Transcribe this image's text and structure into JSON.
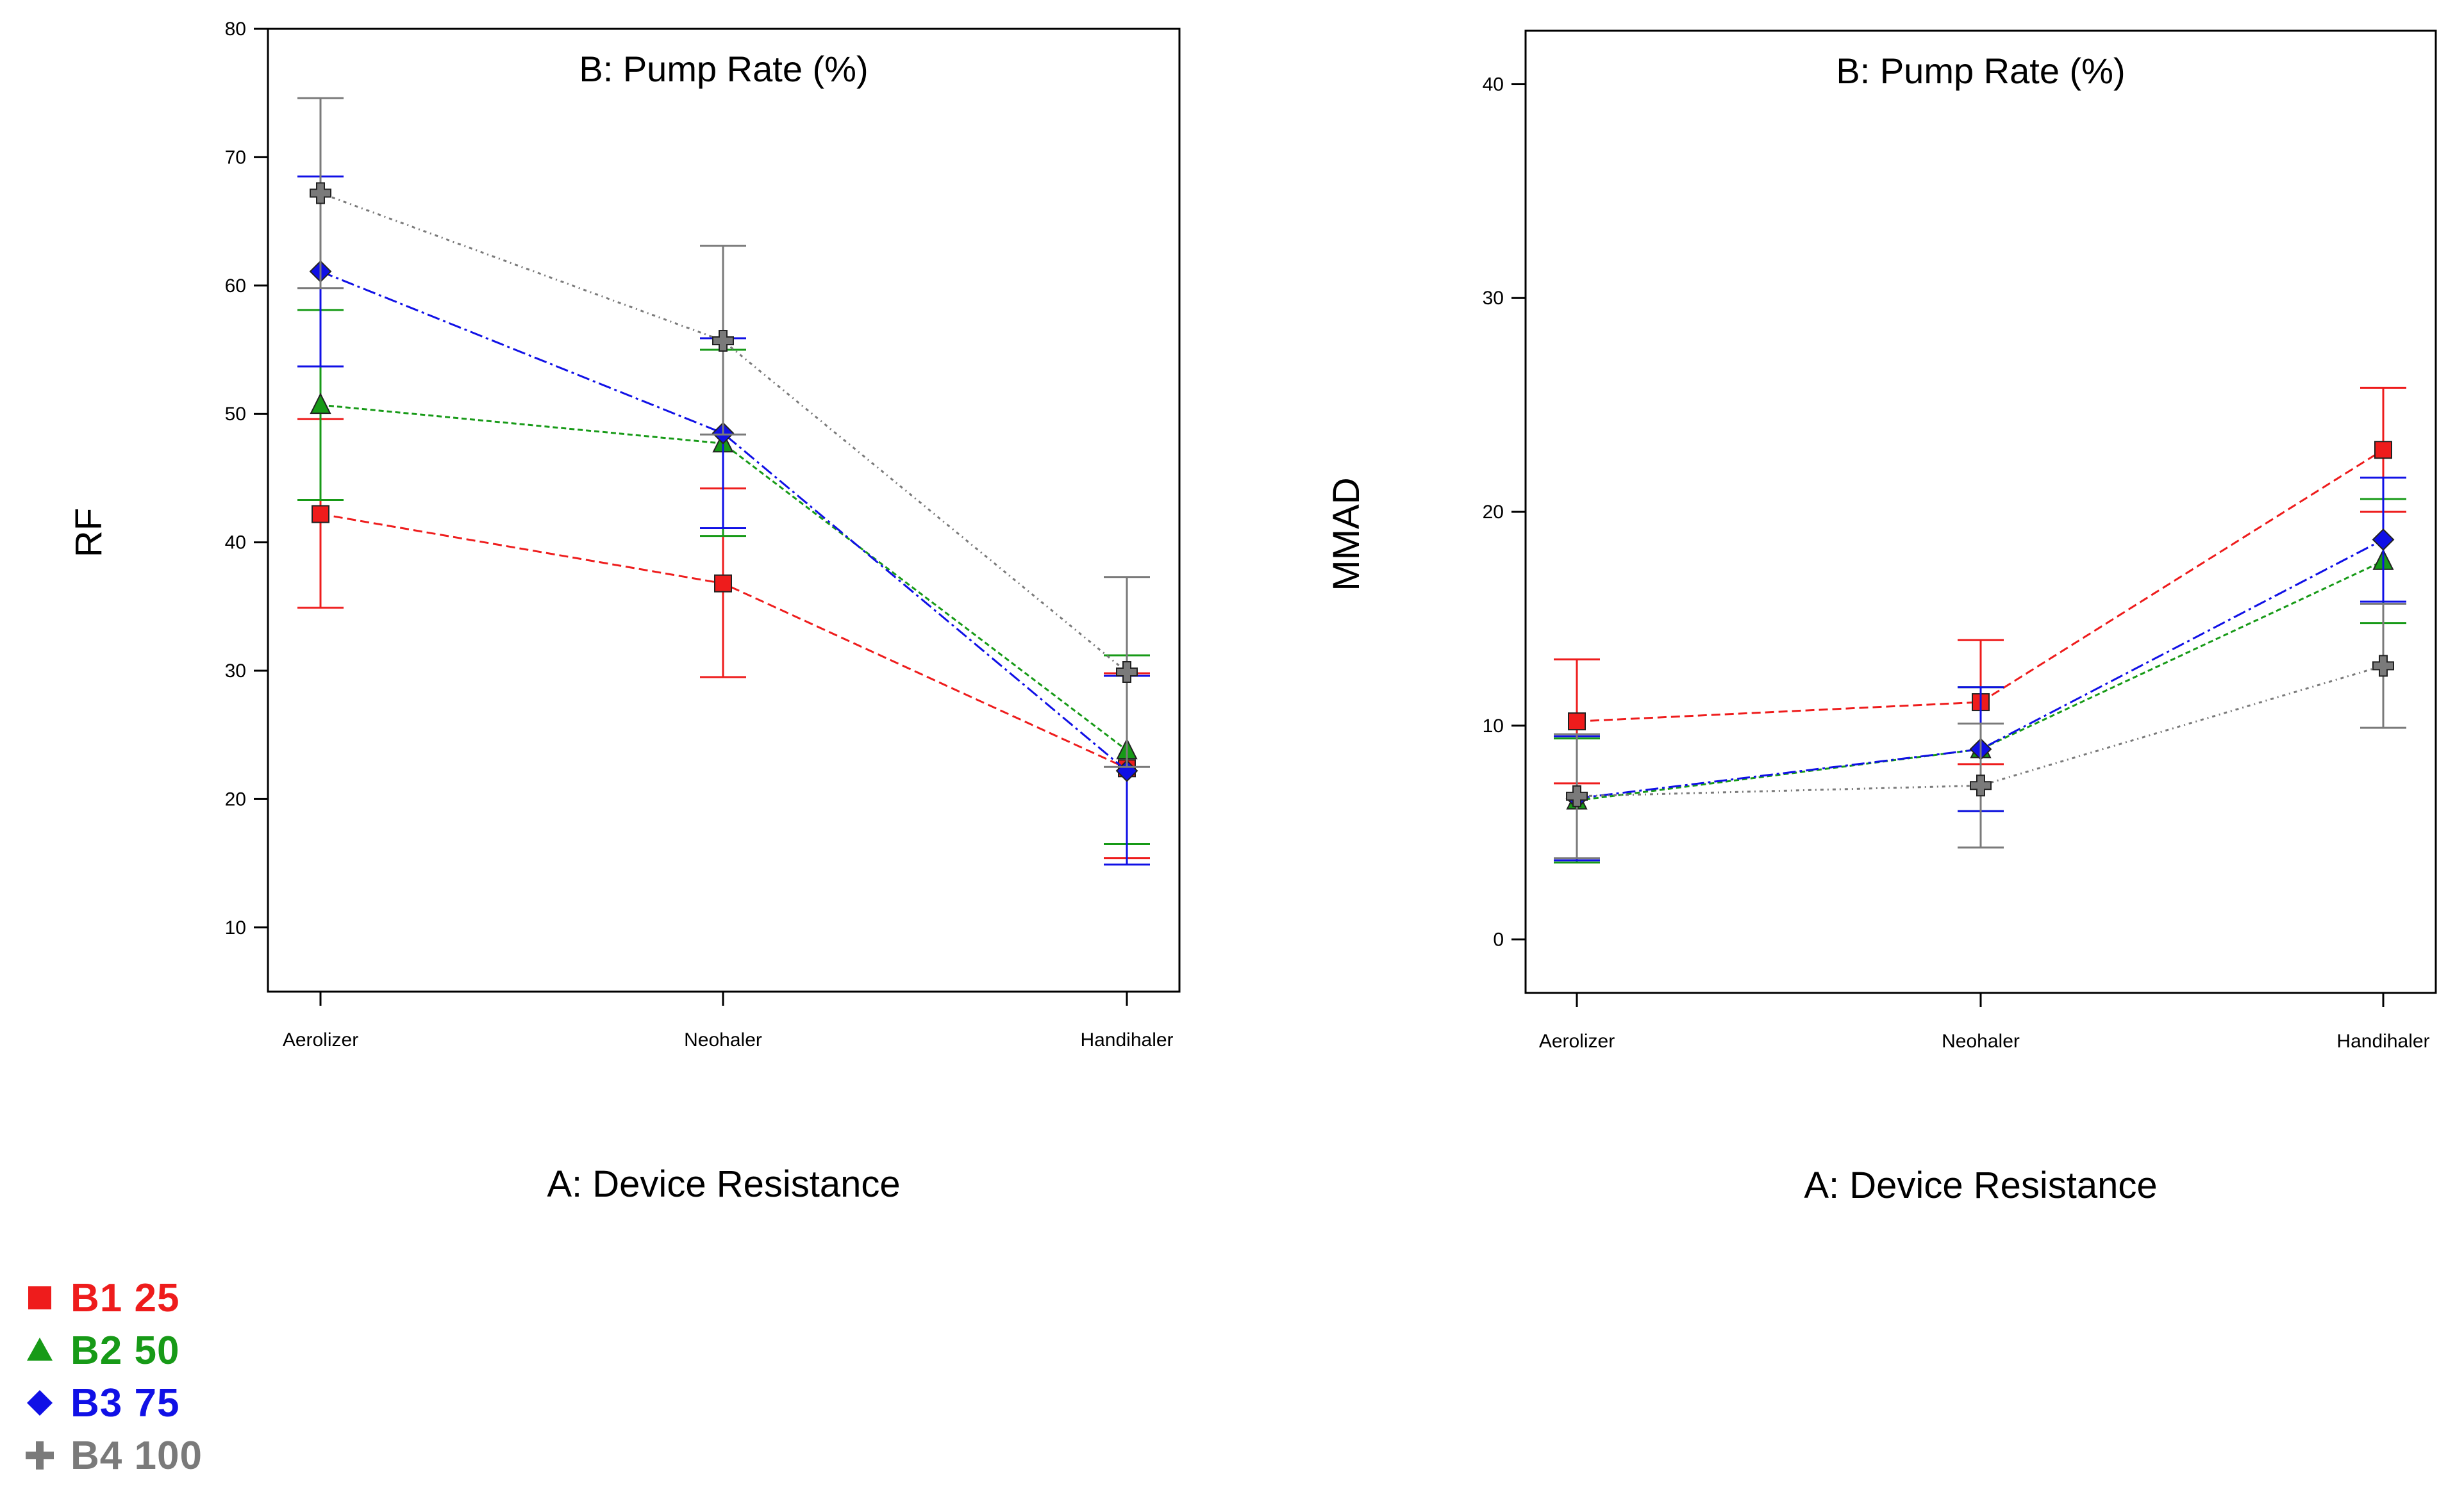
{
  "chart_data": [
    {
      "type": "line",
      "title": "B: Pump Rate (%)",
      "xlabel": "A: Device Resistance",
      "ylabel": "RF",
      "categories": [
        "Aerolizer",
        "Neohaler",
        "Handihaler"
      ],
      "ylim": [
        5,
        80
      ],
      "yticks": [
        10,
        20,
        30,
        40,
        50,
        60,
        70,
        80
      ],
      "series": [
        {
          "name": "B1 25",
          "color": "#ee1c1c",
          "marker": "square",
          "values": [
            42.2,
            36.8,
            22.4
          ],
          "err_low": [
            34.9,
            29.5,
            15.4
          ],
          "err_high": [
            49.6,
            44.2,
            29.8
          ]
        },
        {
          "name": "B2 50",
          "color": "#179a17",
          "marker": "triangle",
          "values": [
            50.7,
            47.7,
            23.8
          ],
          "err_low": [
            43.3,
            40.5,
            16.5
          ],
          "err_high": [
            58.1,
            55.0,
            31.2
          ]
        },
        {
          "name": "B3 75",
          "color": "#1010e6",
          "marker": "diamond",
          "values": [
            61.1,
            48.5,
            22.2
          ],
          "err_low": [
            53.7,
            41.1,
            14.9
          ],
          "err_high": [
            68.5,
            55.9,
            29.6
          ]
        },
        {
          "name": "B4 100",
          "color": "#7a7a7a",
          "marker": "plus",
          "values": [
            67.2,
            55.7,
            29.9
          ],
          "err_low": [
            59.8,
            48.4,
            22.5
          ],
          "err_high": [
            74.6,
            63.1,
            37.3
          ]
        }
      ]
    },
    {
      "type": "line",
      "title": "B: Pump Rate (%)",
      "xlabel": "A: Device Resistance",
      "ylabel": "MMAD",
      "categories": [
        "Aerolizer",
        "Neohaler",
        "Handihaler"
      ],
      "ylim": [
        -2.5,
        42.5
      ],
      "yticks": [
        0,
        10,
        20,
        30,
        40
      ],
      "series": [
        {
          "name": "B1 25",
          "color": "#ee1c1c",
          "marker": "square",
          "values": [
            10.2,
            11.1,
            22.9
          ],
          "err_low": [
            7.3,
            8.2,
            20.0
          ],
          "err_high": [
            13.1,
            14.0,
            25.8
          ]
        },
        {
          "name": "B2 50",
          "color": "#179a17",
          "marker": "triangle",
          "values": [
            6.5,
            8.9,
            17.7
          ],
          "err_low": [
            3.6,
            6.0,
            14.8
          ],
          "err_high": [
            9.4,
            11.8,
            20.6
          ]
        },
        {
          "name": "B3 75",
          "color": "#1010e6",
          "marker": "diamond",
          "values": [
            6.6,
            8.9,
            18.7
          ],
          "err_low": [
            3.7,
            6.0,
            15.8
          ],
          "err_high": [
            9.5,
            11.8,
            21.6
          ]
        },
        {
          "name": "B4 100",
          "color": "#7a7a7a",
          "marker": "plus",
          "values": [
            6.7,
            7.2,
            12.8
          ],
          "err_low": [
            3.8,
            4.3,
            9.9
          ],
          "err_high": [
            9.6,
            10.1,
            15.7
          ]
        }
      ]
    }
  ],
  "legend": [
    {
      "label": "B1 25",
      "color": "#ee1c1c",
      "marker": "square"
    },
    {
      "label": "B2 50",
      "color": "#179a17",
      "marker": "triangle"
    },
    {
      "label": "B3 75",
      "color": "#1010e6",
      "marker": "diamond"
    },
    {
      "label": "B4 100",
      "color": "#7a7a7a",
      "marker": "plus"
    }
  ]
}
